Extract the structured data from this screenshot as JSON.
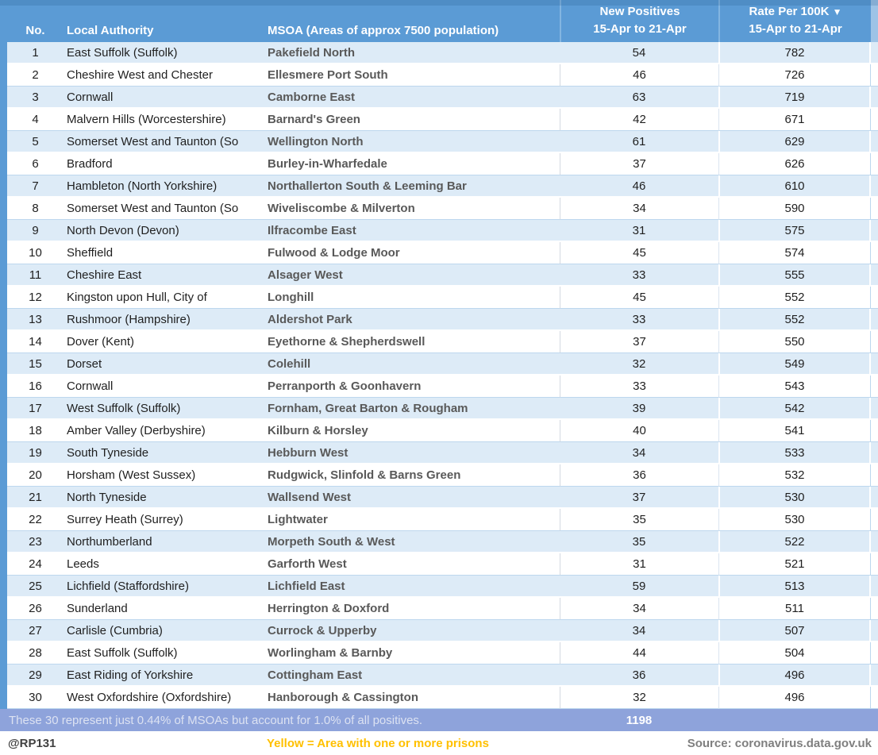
{
  "header": {
    "col_no": "No.",
    "col_authority": "Local Authority",
    "col_msoa": "MSOA (Areas of approx 7500 population)",
    "col_positives_line1": "New Positives",
    "col_positives_line2": "15-Apr to 21-Apr",
    "col_rate_line1": "Rate Per 100K",
    "col_rate_line2": "15-Apr to 21-Apr",
    "sort_indicator": "▼"
  },
  "chart_data": {
    "type": "table",
    "columns": [
      "No.",
      "Local Authority",
      "MSOA (Areas of approx 7500 population)",
      "New Positives 15-Apr to 21-Apr",
      "Rate Per 100K 15-Apr to 21-Apr"
    ],
    "rows": [
      {
        "no": 1,
        "authority": "East Suffolk (Suffolk)",
        "msoa": "Pakefield North",
        "positives": 54,
        "rate": 782
      },
      {
        "no": 2,
        "authority": "Cheshire West and Chester",
        "msoa": "Ellesmere Port South",
        "positives": 46,
        "rate": 726
      },
      {
        "no": 3,
        "authority": "Cornwall",
        "msoa": "Camborne East",
        "positives": 63,
        "rate": 719
      },
      {
        "no": 4,
        "authority": "Malvern Hills (Worcestershire)",
        "msoa": "Barnard's Green",
        "positives": 42,
        "rate": 671
      },
      {
        "no": 5,
        "authority": "Somerset West and Taunton (So",
        "msoa": "Wellington North",
        "positives": 61,
        "rate": 629
      },
      {
        "no": 6,
        "authority": "Bradford",
        "msoa": "Burley-in-Wharfedale",
        "positives": 37,
        "rate": 626
      },
      {
        "no": 7,
        "authority": "Hambleton (North Yorkshire)",
        "msoa": "Northallerton South & Leeming Bar",
        "positives": 46,
        "rate": 610
      },
      {
        "no": 8,
        "authority": "Somerset West and Taunton (So",
        "msoa": "Wiveliscombe & Milverton",
        "positives": 34,
        "rate": 590
      },
      {
        "no": 9,
        "authority": "North Devon (Devon)",
        "msoa": "Ilfracombe East",
        "positives": 31,
        "rate": 575
      },
      {
        "no": 10,
        "authority": "Sheffield",
        "msoa": "Fulwood & Lodge Moor",
        "positives": 45,
        "rate": 574
      },
      {
        "no": 11,
        "authority": "Cheshire East",
        "msoa": "Alsager West",
        "positives": 33,
        "rate": 555
      },
      {
        "no": 12,
        "authority": "Kingston upon Hull, City of",
        "msoa": "Longhill",
        "positives": 45,
        "rate": 552
      },
      {
        "no": 13,
        "authority": "Rushmoor (Hampshire)",
        "msoa": "Aldershot Park",
        "positives": 33,
        "rate": 552
      },
      {
        "no": 14,
        "authority": "Dover (Kent)",
        "msoa": "Eyethorne & Shepherdswell",
        "positives": 37,
        "rate": 550
      },
      {
        "no": 15,
        "authority": "Dorset",
        "msoa": "Colehill",
        "positives": 32,
        "rate": 549
      },
      {
        "no": 16,
        "authority": "Cornwall",
        "msoa": "Perranporth & Goonhavern",
        "positives": 33,
        "rate": 543
      },
      {
        "no": 17,
        "authority": "West Suffolk (Suffolk)",
        "msoa": "Fornham, Great Barton & Rougham",
        "positives": 39,
        "rate": 542
      },
      {
        "no": 18,
        "authority": "Amber Valley (Derbyshire)",
        "msoa": "Kilburn & Horsley",
        "positives": 40,
        "rate": 541
      },
      {
        "no": 19,
        "authority": "South Tyneside",
        "msoa": "Hebburn West",
        "positives": 34,
        "rate": 533
      },
      {
        "no": 20,
        "authority": "Horsham (West Sussex)",
        "msoa": "Rudgwick, Slinfold & Barns Green",
        "positives": 36,
        "rate": 532
      },
      {
        "no": 21,
        "authority": "North Tyneside",
        "msoa": "Wallsend West",
        "positives": 37,
        "rate": 530
      },
      {
        "no": 22,
        "authority": "Surrey Heath (Surrey)",
        "msoa": "Lightwater",
        "positives": 35,
        "rate": 530
      },
      {
        "no": 23,
        "authority": "Northumberland",
        "msoa": "Morpeth South & West",
        "positives": 35,
        "rate": 522
      },
      {
        "no": 24,
        "authority": "Leeds",
        "msoa": "Garforth West",
        "positives": 31,
        "rate": 521
      },
      {
        "no": 25,
        "authority": "Lichfield (Staffordshire)",
        "msoa": "Lichfield East",
        "positives": 59,
        "rate": 513
      },
      {
        "no": 26,
        "authority": "Sunderland",
        "msoa": "Herrington & Doxford",
        "positives": 34,
        "rate": 511
      },
      {
        "no": 27,
        "authority": "Carlisle (Cumbria)",
        "msoa": "Currock & Upperby",
        "positives": 34,
        "rate": 507
      },
      {
        "no": 28,
        "authority": "East Suffolk (Suffolk)",
        "msoa": "Worlingham & Barnby",
        "positives": 44,
        "rate": 504
      },
      {
        "no": 29,
        "authority": "East Riding of Yorkshire",
        "msoa": "Cottingham East",
        "positives": 36,
        "rate": 496
      },
      {
        "no": 30,
        "authority": "West Oxfordshire (Oxfordshire)",
        "msoa": "Hanborough & Cassington",
        "positives": 32,
        "rate": 496
      }
    ],
    "total_new_positives": 1198
  },
  "summary": {
    "text": "These 30 represent just 0.44% of MSOAs but account for 1.0% of all positives.",
    "total": "1198"
  },
  "footer": {
    "handle": "@RP131",
    "legend": "Yellow = Area with one or more prisons",
    "source": "Source: coronavirus.data.gov.uk"
  },
  "colors": {
    "header_blue": "#5b9bd5",
    "stripe_blue": "#ddebf7",
    "summary_band": "#8ea3db",
    "legend_yellow": "#ffc000",
    "msoa_text": "#595959",
    "source_gray": "#7f7f7f"
  }
}
